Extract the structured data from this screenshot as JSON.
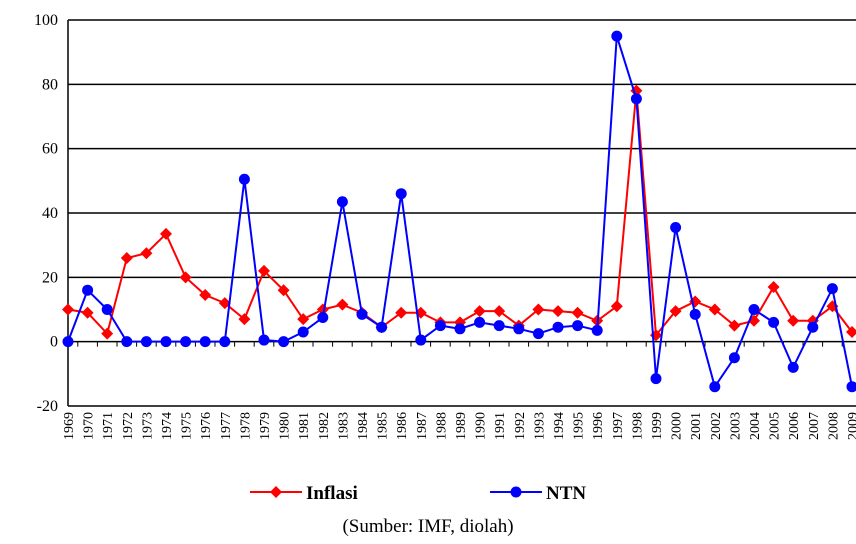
{
  "chart_data": {
    "type": "line",
    "categories": [
      "1969",
      "1970",
      "1971",
      "1972",
      "1973",
      "1974",
      "1975",
      "1976",
      "1977",
      "1978",
      "1979",
      "1980",
      "1981",
      "1982",
      "1983",
      "1984",
      "1985",
      "1986",
      "1987",
      "1988",
      "1989",
      "1990",
      "1991",
      "1992",
      "1993",
      "1994",
      "1995",
      "1996",
      "1997",
      "1998",
      "1999",
      "2000",
      "2001",
      "2002",
      "2003",
      "2004",
      "2005",
      "2006",
      "2007",
      "2008",
      "2009"
    ],
    "series": [
      {
        "name": "Inflasi",
        "color": "#ff0000",
        "marker": "diamond",
        "values": [
          10,
          9,
          2.5,
          26,
          27.5,
          33.5,
          20,
          14.5,
          12,
          7,
          22,
          16,
          7,
          10,
          11.5,
          9,
          4.5,
          9,
          9,
          6,
          6,
          9.5,
          9.5,
          5,
          10,
          9.5,
          9,
          6.5,
          11,
          78,
          2,
          9.5,
          12.5,
          10,
          5,
          6.5,
          17,
          6.5,
          6.5,
          11,
          3
        ]
      },
      {
        "name": "NTN",
        "color": "#0000ff",
        "marker": "circle",
        "values": [
          0,
          16,
          10,
          0,
          0,
          0,
          0,
          0,
          0,
          50.5,
          0.5,
          0,
          3,
          7.5,
          43.5,
          8.5,
          4.5,
          46,
          0.5,
          5,
          4,
          6,
          5,
          4,
          2.5,
          4.5,
          5,
          3.5,
          95,
          75.5,
          -11.5,
          35.5,
          8.5,
          -14,
          -5,
          10,
          6,
          -8,
          4.5,
          16.5,
          -14
        ]
      }
    ],
    "ylim": [
      -20,
      100
    ],
    "yticks": [
      -20,
      0,
      20,
      40,
      60,
      80,
      100
    ],
    "grid": true,
    "legend": "bottom",
    "source": "(Sumber: IMF, diolah)"
  }
}
